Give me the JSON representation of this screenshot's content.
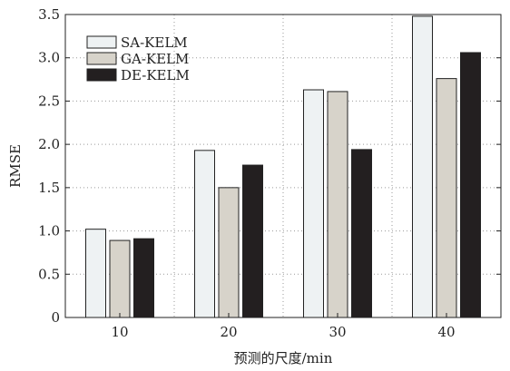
{
  "chart_data": {
    "type": "bar",
    "title": "",
    "xlabel": "预测的尺度/min",
    "ylabel": "RMSE",
    "ylim": [
      0,
      3.5
    ],
    "yticks": [
      "0",
      "0.5",
      "1.0",
      "1.5",
      "2.0",
      "2.5",
      "3.0",
      "3.5"
    ],
    "categories": [
      "10",
      "20",
      "30",
      "40"
    ],
    "grid": true,
    "legend_position": "top-left",
    "series": [
      {
        "name": "SA-KELM",
        "values": [
          1.02,
          1.93,
          2.63,
          3.48
        ],
        "color": "#eef2f3"
      },
      {
        "name": "GA-KELM",
        "values": [
          0.89,
          1.5,
          2.61,
          2.76
        ],
        "color": "#d7d3ca"
      },
      {
        "name": "DE-KELM",
        "values": [
          0.91,
          1.76,
          1.94,
          3.06
        ],
        "color": "#231f20"
      }
    ]
  }
}
